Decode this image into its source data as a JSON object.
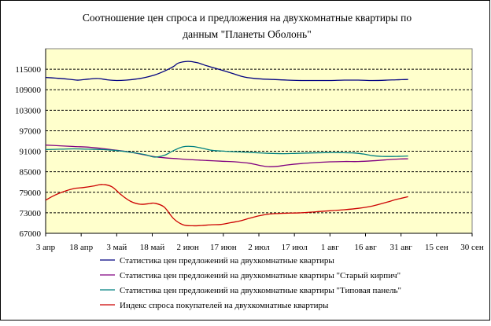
{
  "chart_data": {
    "type": "line",
    "title_line1": "Соотношение цен спроса и предложения на двухкомнатные квартиры      по",
    "title_line2": "данным \"Планеты Оболонь\"",
    "xlabel": "",
    "ylabel": "",
    "ylim": [
      67000,
      121000
    ],
    "y_ticks": [
      115000,
      109000,
      103000,
      97000,
      91000,
      85000,
      79000,
      73000,
      67000
    ],
    "y_tick_labels": [
      "115000",
      "109000",
      "103000",
      "97000",
      "91000",
      "85000",
      "79000",
      "73000",
      "67000"
    ],
    "x_ticks": [
      "3 апр",
      "18 апр",
      "3 май",
      "18 май",
      "2 июн",
      "17 июн",
      "2 июл",
      "17 июл",
      "1 авг",
      "16 авг",
      "31 авг",
      "15 сен",
      "30 сен"
    ],
    "grid": "horizontal dashed",
    "legend_position": "bottom",
    "colors": {
      "plot_bg": "#ffffcc",
      "gridline": "#000000"
    },
    "series": [
      {
        "name": "Статистика цен предложений на двухкомнатные квартиры",
        "color": "#000080",
        "points": [
          [
            0,
            112600
          ],
          [
            4,
            112400
          ],
          [
            8,
            112200
          ],
          [
            12,
            111900
          ],
          [
            14,
            111800
          ],
          [
            18,
            112100
          ],
          [
            22,
            112300
          ],
          [
            26,
            111900
          ],
          [
            30,
            111700
          ],
          [
            34,
            111800
          ],
          [
            38,
            112100
          ],
          [
            42,
            112600
          ],
          [
            46,
            113300
          ],
          [
            50,
            114400
          ],
          [
            54,
            115800
          ],
          [
            56,
            116800
          ],
          [
            60,
            117300
          ],
          [
            64,
            116900
          ],
          [
            68,
            116000
          ],
          [
            72,
            115200
          ],
          [
            76,
            114400
          ],
          [
            80,
            113500
          ],
          [
            84,
            112700
          ],
          [
            90,
            112200
          ],
          [
            96,
            112000
          ],
          [
            102,
            111800
          ],
          [
            108,
            111700
          ],
          [
            114,
            111700
          ],
          [
            120,
            111700
          ],
          [
            126,
            111800
          ],
          [
            132,
            111800
          ],
          [
            138,
            111700
          ],
          [
            144,
            111800
          ],
          [
            148,
            111900
          ],
          [
            153,
            112000
          ]
        ]
      },
      {
        "name": "Статистика цен предложений на двухкомнатные квартиры \"Старый кирпич\"",
        "color": "#800080",
        "points": [
          [
            0,
            92800
          ],
          [
            6,
            92600
          ],
          [
            12,
            92400
          ],
          [
            18,
            92200
          ],
          [
            24,
            91800
          ],
          [
            30,
            91300
          ],
          [
            36,
            90700
          ],
          [
            42,
            89900
          ],
          [
            46,
            89400
          ],
          [
            50,
            89100
          ],
          [
            56,
            88800
          ],
          [
            62,
            88500
          ],
          [
            68,
            88300
          ],
          [
            74,
            88100
          ],
          [
            80,
            87900
          ],
          [
            86,
            87500
          ],
          [
            90,
            86900
          ],
          [
            94,
            86500
          ],
          [
            98,
            86600
          ],
          [
            102,
            87000
          ],
          [
            108,
            87400
          ],
          [
            114,
            87700
          ],
          [
            120,
            87900
          ],
          [
            126,
            88000
          ],
          [
            132,
            88000
          ],
          [
            138,
            88200
          ],
          [
            144,
            88500
          ],
          [
            148,
            88700
          ],
          [
            153,
            88800
          ]
        ]
      },
      {
        "name": "Статистика цен предложений на двухкомнатные квартиры \"Типовая панель\"",
        "color": "#008080",
        "points": [
          [
            0,
            91500
          ],
          [
            6,
            91600
          ],
          [
            12,
            91700
          ],
          [
            18,
            91600
          ],
          [
            24,
            91500
          ],
          [
            30,
            91200
          ],
          [
            36,
            90700
          ],
          [
            42,
            90000
          ],
          [
            46,
            89300
          ],
          [
            50,
            89800
          ],
          [
            54,
            91200
          ],
          [
            58,
            92300
          ],
          [
            62,
            92400
          ],
          [
            66,
            91900
          ],
          [
            70,
            91300
          ],
          [
            76,
            91000
          ],
          [
            82,
            90800
          ],
          [
            88,
            90600
          ],
          [
            94,
            90400
          ],
          [
            100,
            90300
          ],
          [
            106,
            90400
          ],
          [
            112,
            90500
          ],
          [
            118,
            90600
          ],
          [
            124,
            90600
          ],
          [
            130,
            90500
          ],
          [
            134,
            90200
          ],
          [
            138,
            89700
          ],
          [
            142,
            89500
          ],
          [
            148,
            89500
          ],
          [
            153,
            89600
          ]
        ]
      },
      {
        "name": "Индекс спроса покупателей на двухкомнатные квартиры",
        "color": "#cc0000",
        "points": [
          [
            0,
            76700
          ],
          [
            4,
            78200
          ],
          [
            8,
            79300
          ],
          [
            12,
            80100
          ],
          [
            16,
            80400
          ],
          [
            20,
            80800
          ],
          [
            24,
            81300
          ],
          [
            28,
            80600
          ],
          [
            32,
            78200
          ],
          [
            36,
            76300
          ],
          [
            40,
            75500
          ],
          [
            44,
            75700
          ],
          [
            46,
            75800
          ],
          [
            50,
            74700
          ],
          [
            54,
            71300
          ],
          [
            58,
            69500
          ],
          [
            62,
            69200
          ],
          [
            66,
            69300
          ],
          [
            70,
            69500
          ],
          [
            74,
            69600
          ],
          [
            78,
            70100
          ],
          [
            82,
            70600
          ],
          [
            86,
            71400
          ],
          [
            90,
            72100
          ],
          [
            94,
            72600
          ],
          [
            98,
            72800
          ],
          [
            102,
            72900
          ],
          [
            108,
            73000
          ],
          [
            114,
            73300
          ],
          [
            120,
            73600
          ],
          [
            126,
            73900
          ],
          [
            132,
            74300
          ],
          [
            138,
            75000
          ],
          [
            144,
            76100
          ],
          [
            148,
            76900
          ],
          [
            153,
            77700
          ]
        ]
      }
    ]
  }
}
